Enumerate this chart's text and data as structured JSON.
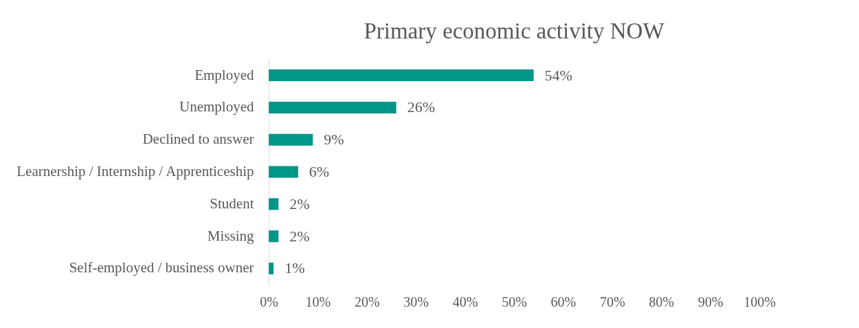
{
  "chart_data": {
    "type": "bar",
    "orientation": "horizontal",
    "title": "Primary economic activity NOW",
    "categories": [
      "Employed",
      "Unemployed",
      "Declined to answer",
      "Learnership / Internship / Apprenticeship",
      "Student",
      "Missing",
      "Self-employed / business owner"
    ],
    "values": [
      54,
      26,
      9,
      6,
      2,
      2,
      1
    ],
    "value_labels": [
      "54%",
      "26%",
      "9%",
      "6%",
      "2%",
      "2%",
      "1%"
    ],
    "color": "#009688",
    "xlim": [
      0,
      100
    ],
    "xticks": [
      {
        "value": 0,
        "label": "0%"
      },
      {
        "value": 10,
        "label": "10%"
      },
      {
        "value": 20,
        "label": "20%"
      },
      {
        "value": 30,
        "label": "30%"
      },
      {
        "value": 40,
        "label": "40%"
      },
      {
        "value": 50,
        "label": "50%"
      },
      {
        "value": 60,
        "label": "60%"
      },
      {
        "value": 70,
        "label": "70%"
      },
      {
        "value": 80,
        "label": "80%"
      },
      {
        "value": 90,
        "label": "90%"
      },
      {
        "value": 100,
        "label": "100%"
      }
    ],
    "grid": false
  }
}
